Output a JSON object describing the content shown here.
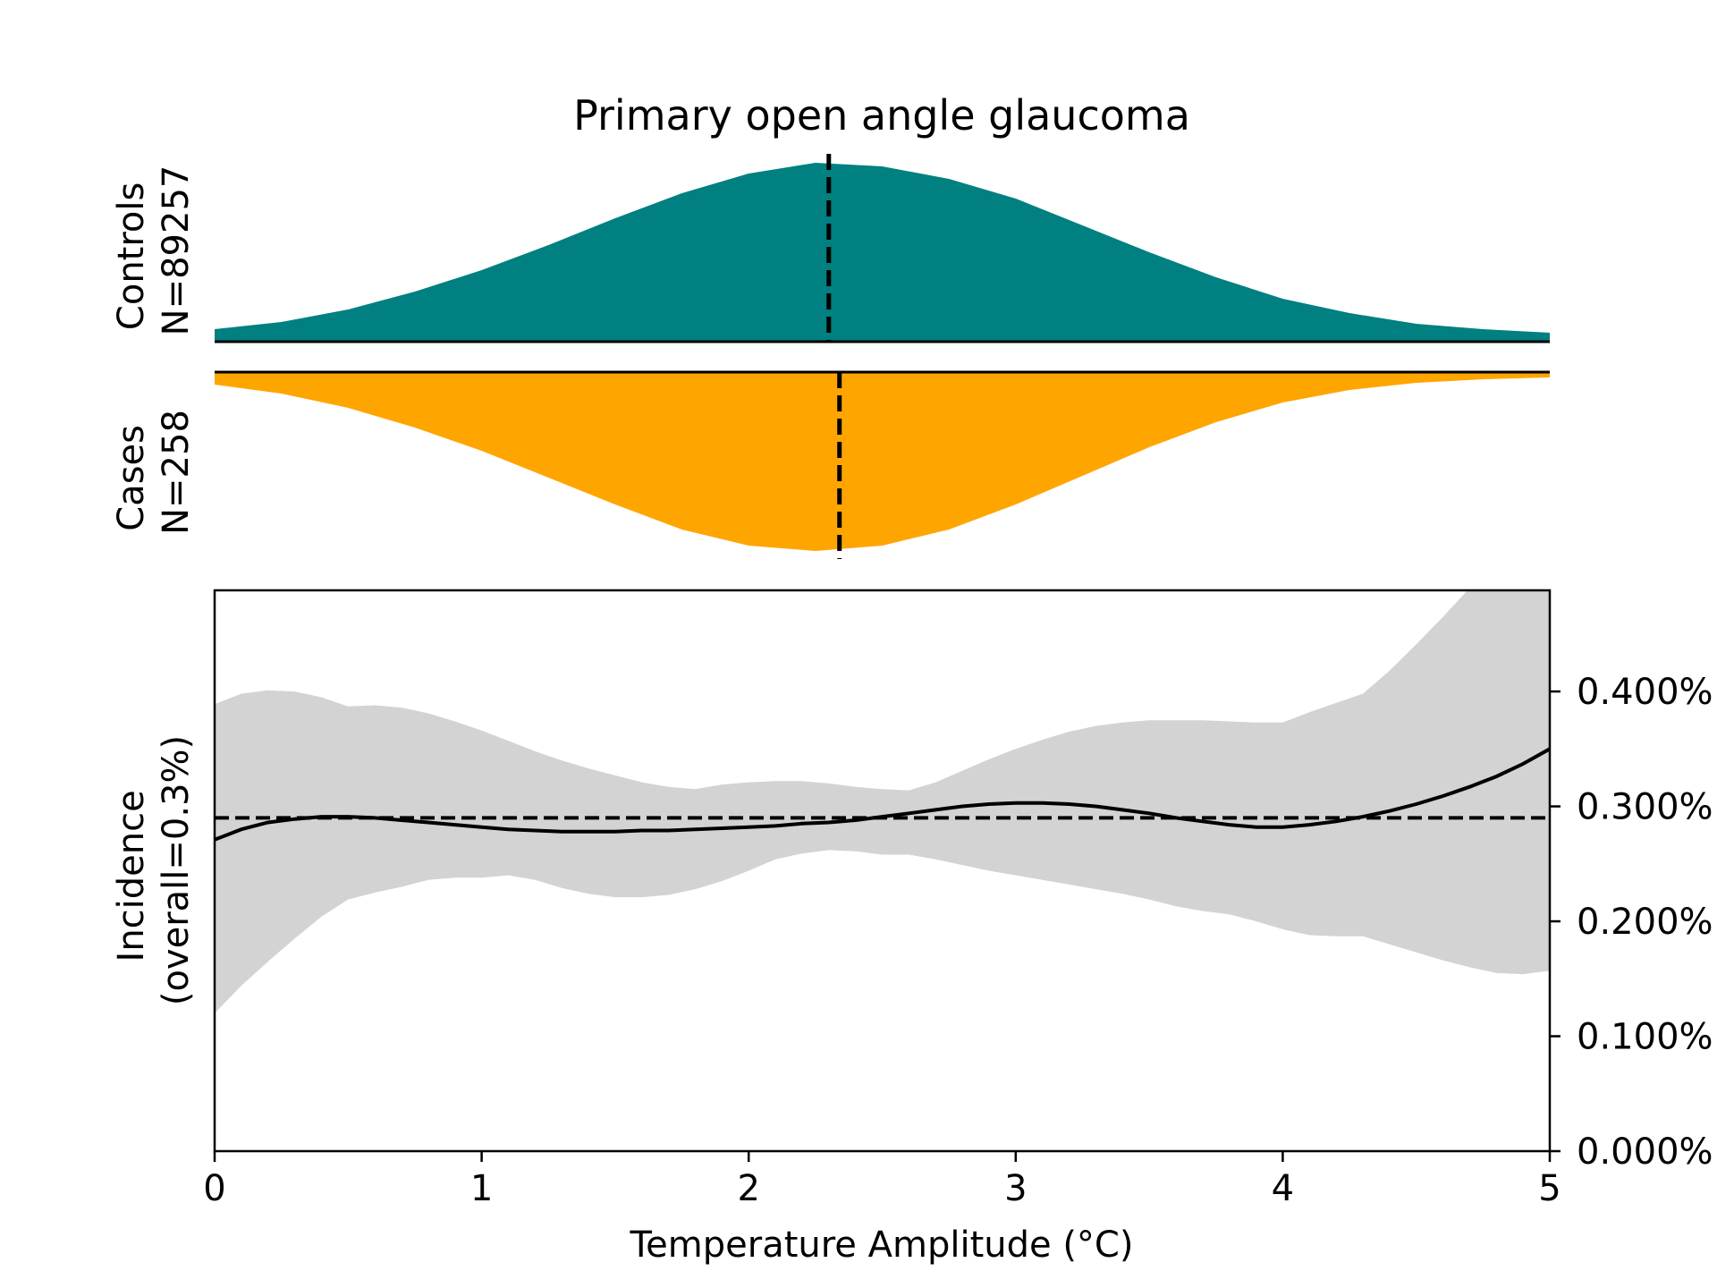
{
  "chart_data": [
    {
      "type": "area",
      "panel": "controls-density",
      "title": "Primary open angle glaucoma",
      "ylabel_line1": "Controls",
      "ylabel_line2": "N=89257",
      "color": "#008080",
      "median": 2.3,
      "x": [
        0,
        0.25,
        0.5,
        0.75,
        1.0,
        1.25,
        1.5,
        1.75,
        2.0,
        2.25,
        2.5,
        2.75,
        3.0,
        3.25,
        3.5,
        3.75,
        4.0,
        4.25,
        4.5,
        4.75,
        5.0
      ],
      "density": [
        0.07,
        0.11,
        0.18,
        0.28,
        0.4,
        0.54,
        0.69,
        0.83,
        0.94,
        1.0,
        0.98,
        0.91,
        0.8,
        0.65,
        0.5,
        0.36,
        0.24,
        0.16,
        0.1,
        0.07,
        0.05
      ]
    },
    {
      "type": "area",
      "panel": "cases-density",
      "ylabel_line1": "Cases",
      "ylabel_line2": "N=258",
      "color": "#FFA500",
      "median": 2.34,
      "x": [
        0,
        0.25,
        0.5,
        0.75,
        1.0,
        1.25,
        1.5,
        1.75,
        2.0,
        2.25,
        2.5,
        2.75,
        3.0,
        3.25,
        3.5,
        3.75,
        4.0,
        4.25,
        4.5,
        4.75,
        5.0
      ],
      "density": [
        0.07,
        0.12,
        0.2,
        0.31,
        0.44,
        0.59,
        0.74,
        0.88,
        0.97,
        1.0,
        0.97,
        0.88,
        0.74,
        0.58,
        0.42,
        0.28,
        0.17,
        0.1,
        0.06,
        0.04,
        0.03
      ]
    },
    {
      "type": "line",
      "panel": "incidence",
      "xlabel": "Temperature Amplitude (°C)",
      "ylabel_line1": "Incidence",
      "ylabel_line2": "(overall=0.3%)",
      "xlim": [
        0,
        5
      ],
      "ylim": [
        0,
        0.00488
      ],
      "xticks": [
        0,
        1,
        2,
        3,
        4,
        5
      ],
      "xtick_labels": [
        "0",
        "1",
        "2",
        "3",
        "4",
        "5"
      ],
      "yticks": [
        0,
        0.001,
        0.002,
        0.003,
        0.004
      ],
      "ytick_labels": [
        "0.000%",
        "0.100%",
        "0.200%",
        "0.300%",
        "0.400%"
      ],
      "y_axis_side": "right",
      "overall_rate": 0.0029,
      "line_color": "#000000",
      "band_color": "#d3d3d3",
      "x": [
        0,
        0.1,
        0.2,
        0.3,
        0.4,
        0.5,
        0.6,
        0.7,
        0.8,
        0.9,
        1.0,
        1.1,
        1.2,
        1.3,
        1.4,
        1.5,
        1.6,
        1.7,
        1.8,
        1.9,
        2.0,
        2.1,
        2.2,
        2.3,
        2.4,
        2.5,
        2.6,
        2.7,
        2.8,
        2.9,
        3.0,
        3.1,
        3.2,
        3.3,
        3.4,
        3.5,
        3.6,
        3.7,
        3.8,
        3.9,
        4.0,
        4.1,
        4.2,
        4.3,
        4.4,
        4.5,
        4.6,
        4.7,
        4.8,
        4.9,
        5.0
      ],
      "y": [
        0.00271,
        0.0028,
        0.00286,
        0.00289,
        0.00291,
        0.00291,
        0.0029,
        0.00288,
        0.00286,
        0.00284,
        0.00282,
        0.0028,
        0.00279,
        0.00278,
        0.00278,
        0.00278,
        0.00279,
        0.00279,
        0.0028,
        0.00281,
        0.00282,
        0.00283,
        0.00285,
        0.00286,
        0.00288,
        0.00291,
        0.00294,
        0.00297,
        0.003,
        0.00302,
        0.00303,
        0.00303,
        0.00302,
        0.003,
        0.00297,
        0.00294,
        0.0029,
        0.00287,
        0.00284,
        0.00282,
        0.00282,
        0.00284,
        0.00287,
        0.00291,
        0.00296,
        0.00302,
        0.00309,
        0.00317,
        0.00326,
        0.00337,
        0.0035
      ],
      "upper": [
        0.00389,
        0.00398,
        0.00401,
        0.004,
        0.00395,
        0.00387,
        0.00388,
        0.00386,
        0.00381,
        0.00374,
        0.00366,
        0.00357,
        0.00348,
        0.0034,
        0.00333,
        0.00327,
        0.00321,
        0.00317,
        0.00315,
        0.00319,
        0.00321,
        0.00322,
        0.00322,
        0.0032,
        0.00317,
        0.00315,
        0.00314,
        0.00321,
        0.00331,
        0.00341,
        0.0035,
        0.00358,
        0.00365,
        0.0037,
        0.00373,
        0.00375,
        0.00375,
        0.00375,
        0.00374,
        0.00373,
        0.00373,
        0.00382,
        0.0039,
        0.00398,
        0.00418,
        0.00441,
        0.00465,
        0.0049,
        0.00515,
        0.0054,
        0.00565
      ],
      "lower": [
        0.0012,
        0.00144,
        0.00165,
        0.00185,
        0.00204,
        0.00219,
        0.00225,
        0.0023,
        0.00236,
        0.00238,
        0.00238,
        0.0024,
        0.00236,
        0.00229,
        0.00224,
        0.00221,
        0.00221,
        0.00223,
        0.00228,
        0.00235,
        0.00244,
        0.00254,
        0.00259,
        0.00262,
        0.00261,
        0.00258,
        0.00258,
        0.00254,
        0.00249,
        0.00244,
        0.0024,
        0.00236,
        0.00232,
        0.00228,
        0.00224,
        0.00219,
        0.00213,
        0.00209,
        0.00206,
        0.002,
        0.00193,
        0.00188,
        0.00187,
        0.00187,
        0.0018,
        0.00173,
        0.00166,
        0.0016,
        0.00155,
        0.00154,
        0.00157
      ]
    }
  ]
}
